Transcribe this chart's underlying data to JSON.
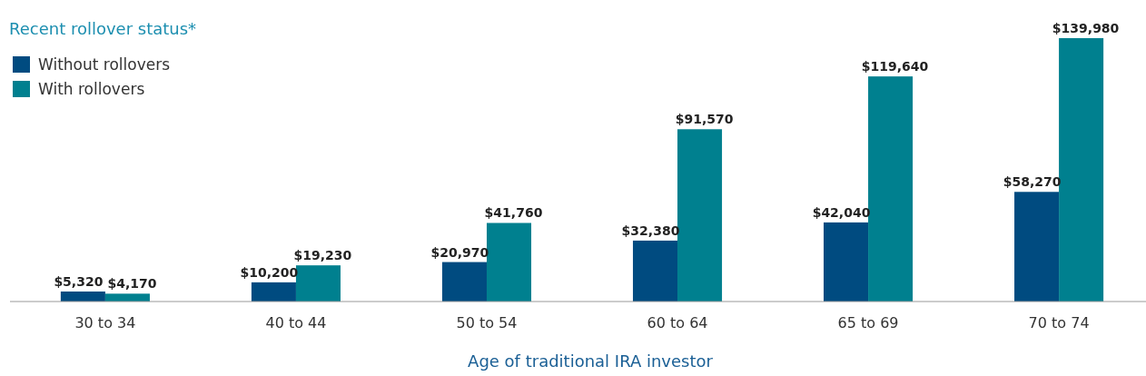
{
  "chart_data": {
    "type": "bar",
    "legend_title": "Recent rollover status*",
    "xlabel": "Age of traditional IRA investor",
    "categories": [
      "30 to 34",
      "40 to 44",
      "50 to 54",
      "60 to 64",
      "65 to 69",
      "70 to 74"
    ],
    "series": [
      {
        "name": "Without rollovers",
        "color": "#004b80",
        "values": [
          5320,
          10200,
          20970,
          32380,
          42040,
          58270
        ],
        "value_labels": [
          "$5,320",
          "$10,200",
          "$20,970",
          "$32,380",
          "$42,040",
          "$58,270"
        ]
      },
      {
        "name": "With rollovers",
        "color": "#00808f",
        "values": [
          4170,
          19230,
          41760,
          91570,
          119640,
          139980
        ],
        "value_labels": [
          "$4,170",
          "$19,230",
          "$41,760",
          "$91,570",
          "$119,640",
          "$139,980"
        ]
      }
    ],
    "legend": "top left"
  }
}
